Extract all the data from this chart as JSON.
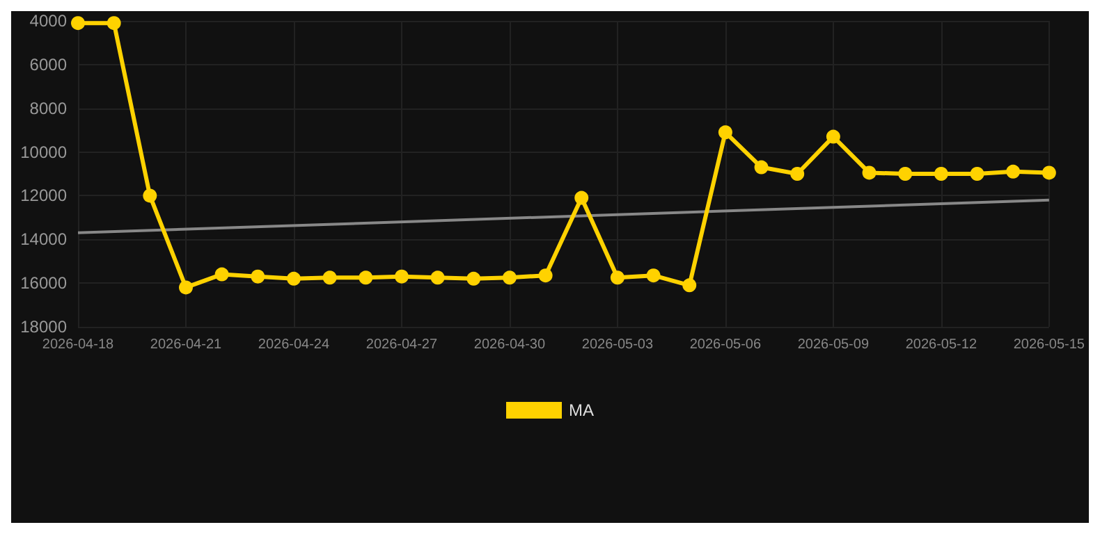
{
  "chart_data": {
    "type": "line",
    "x": [
      "2026-04-18",
      "2026-04-19",
      "2026-04-20",
      "2026-04-21",
      "2026-04-22",
      "2026-04-23",
      "2026-04-24",
      "2026-04-25",
      "2026-04-26",
      "2026-04-27",
      "2026-04-28",
      "2026-04-29",
      "2026-04-30",
      "2026-05-01",
      "2026-05-02",
      "2026-05-03",
      "2026-05-04",
      "2026-05-05",
      "2026-05-06",
      "2026-05-07",
      "2026-05-08",
      "2026-05-09",
      "2026-05-10",
      "2026-05-11",
      "2026-05-12",
      "2026-05-13",
      "2026-05-14",
      "2026-05-15"
    ],
    "series": [
      {
        "name": "MA",
        "color": "#ffd200",
        "values": [
          4100,
          4100,
          12000,
          16200,
          15600,
          15700,
          15800,
          15750,
          15750,
          15700,
          15750,
          15800,
          15750,
          15650,
          12100,
          15750,
          15650,
          16100,
          9100,
          10700,
          11000,
          9300,
          10950,
          11000,
          11000,
          11000,
          10900,
          10950
        ]
      },
      {
        "color": "#888888",
        "marker": "none",
        "x": [
          "2026-04-18",
          "2026-05-15"
        ],
        "values": [
          13700,
          12200
        ]
      }
    ],
    "xlim": [
      "2026-04-18",
      "2026-05-15"
    ],
    "xticks": [
      "2026-04-18",
      "2026-04-21",
      "2026-04-24",
      "2026-04-27",
      "2026-04-30",
      "2026-05-03",
      "2026-05-06",
      "2026-05-09",
      "2026-05-12",
      "2026-05-15"
    ],
    "ylim": [
      18000,
      4000
    ],
    "yticks": [
      4000,
      6000,
      8000,
      10000,
      12000,
      14000,
      16000,
      18000
    ],
    "grid": true,
    "legend": "bottom",
    "marker": "circle"
  }
}
